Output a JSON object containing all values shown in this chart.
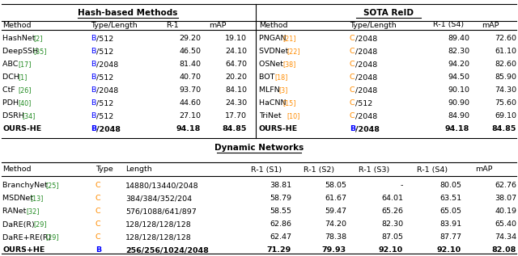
{
  "fig_width": 6.4,
  "fig_height": 3.17,
  "dpi": 100,
  "bg_color": "#ffffff",
  "hash_title": "Hash-based Methods",
  "sota_title": "SOTA ReID",
  "dynamic_title": "Dynamic Networks",
  "hash_headers": [
    "Method",
    "Type/Length",
    "R-1",
    "mAP"
  ],
  "sota_headers": [
    "Method",
    "Type/Length",
    "R-1 (S4)",
    "mAP"
  ],
  "dynamic_headers": [
    "Method",
    "Type",
    "Length",
    "R-1 (S1)",
    "R-1 (S2)",
    "R-1 (S3)",
    "R-1 (S4)",
    "mAP"
  ],
  "hash_rows": [
    [
      "HashNet ",
      "[2]",
      "B",
      "/512",
      "29.20",
      "19.10"
    ],
    [
      "DeepSSH ",
      "[35]",
      "B",
      "/512",
      "46.50",
      "24.10"
    ],
    [
      "ABC ",
      "[17]",
      "B",
      "/2048",
      "81.40",
      "64.70"
    ],
    [
      "DCH ",
      "[1]",
      "B",
      "/512",
      "40.70",
      "20.20"
    ],
    [
      "CtF ",
      "[26]",
      "B",
      "/2048",
      "93.70",
      "84.10"
    ],
    [
      "PDH ",
      "[40]",
      "B",
      "/512",
      "44.60",
      "24.30"
    ],
    [
      "DSRH ",
      "[34]",
      "B",
      "/512",
      "27.10",
      "17.70"
    ],
    [
      "OURS-HE",
      "",
      "B",
      "/2048",
      "94.18",
      "84.85"
    ]
  ],
  "hash_bold_row": 7,
  "sota_rows": [
    [
      "PNGAN ",
      "[21]",
      "C",
      "/2048",
      "89.40",
      "72.60"
    ],
    [
      "SVDNet ",
      "[22]",
      "C",
      "/2048",
      "82.30",
      "61.10"
    ],
    [
      "OSNet ",
      "[38]",
      "C",
      "/2048",
      "94.20",
      "82.60"
    ],
    [
      "BOT ",
      "[18]",
      "C",
      "/2048",
      "94.50",
      "85.90"
    ],
    [
      "MLFN ",
      "[3]",
      "C",
      "/2048",
      "90.10",
      "74.30"
    ],
    [
      "HaCNN ",
      "[15]",
      "C",
      "/512",
      "90.90",
      "75.60"
    ],
    [
      "TriNet ",
      "[10]",
      "C",
      "/2048",
      "84.90",
      "69.10"
    ],
    [
      "OURS-HE",
      "",
      "B",
      "/2048",
      "94.18",
      "84.85"
    ]
  ],
  "sota_bold_row": 7,
  "dynamic_rows": [
    [
      "BranchyNet ",
      "[25]",
      "C",
      "14880/13440/2048",
      "38.81",
      "58.05",
      "-",
      "80.05",
      "62.76"
    ],
    [
      "MSDNet ",
      "[13]",
      "C",
      "384/384/352/204",
      "58.79",
      "61.67",
      "64.01",
      "63.51",
      "38.07"
    ],
    [
      "RANet ",
      "[32]",
      "C",
      "576/1088/641/897",
      "58.55",
      "59.47",
      "65.26",
      "65.05",
      "40.19"
    ],
    [
      "DaRE(R) ",
      "[29]",
      "C",
      "128/128/128/128",
      "62.86",
      "74.20",
      "82.30",
      "83.91",
      "65.40"
    ],
    [
      "DaRE+RE(R) ",
      "[29]",
      "C",
      "128/128/128/128",
      "62.47",
      "78.38",
      "87.05",
      "87.77",
      "74.34"
    ],
    [
      "OURS+HE",
      "",
      "B",
      "256/256/1024/2048",
      "71.29",
      "79.93",
      "92.10",
      "92.10",
      "82.08"
    ]
  ],
  "dynamic_bold_row": 5,
  "color_B": "#0000ff",
  "color_C": "#ff8c00",
  "color_black": "#000000",
  "color_green": "#228B22",
  "fontsize": 6.8,
  "fontsize_ref": 5.8,
  "fontsize_title": 7.5
}
